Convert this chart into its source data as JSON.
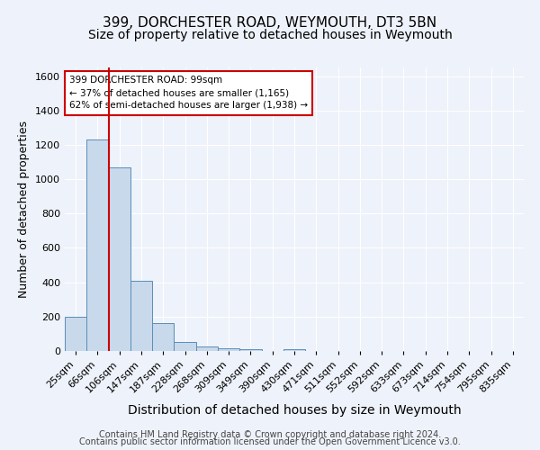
{
  "title1": "399, DORCHESTER ROAD, WEYMOUTH, DT3 5BN",
  "title2": "Size of property relative to detached houses in Weymouth",
  "xlabel": "Distribution of detached houses by size in Weymouth",
  "ylabel": "Number of detached properties",
  "categories": [
    "25sqm",
    "66sqm",
    "106sqm",
    "147sqm",
    "187sqm",
    "228sqm",
    "268sqm",
    "309sqm",
    "349sqm",
    "390sqm",
    "430sqm",
    "471sqm",
    "511sqm",
    "552sqm",
    "592sqm",
    "633sqm",
    "673sqm",
    "714sqm",
    "754sqm",
    "795sqm",
    "835sqm"
  ],
  "values": [
    200,
    1230,
    1070,
    410,
    165,
    52,
    25,
    14,
    10,
    0,
    10,
    0,
    0,
    0,
    0,
    0,
    0,
    0,
    0,
    0,
    0
  ],
  "bar_color": "#c8d9ec",
  "bar_edge_color": "#5b8db8",
  "vline_x_pos": 1.5,
  "vline_color": "#cc0000",
  "ylim": [
    0,
    1650
  ],
  "annotation_text": "399 DORCHESTER ROAD: 99sqm\n← 37% of detached houses are smaller (1,165)\n62% of semi-detached houses are larger (1,938) →",
  "annotation_box_color": "#ffffff",
  "annotation_box_edge": "#cc0000",
  "footer1": "Contains HM Land Registry data © Crown copyright and database right 2024.",
  "footer2": "Contains public sector information licensed under the Open Government Licence v3.0.",
  "bg_color": "#eef2fa",
  "grid_color": "#ffffff",
  "title1_fontsize": 11,
  "title2_fontsize": 10,
  "xlabel_fontsize": 10,
  "ylabel_fontsize": 9,
  "tick_fontsize": 8,
  "footer_fontsize": 7,
  "yticks": [
    0,
    200,
    400,
    600,
    800,
    1000,
    1200,
    1400,
    1600
  ]
}
